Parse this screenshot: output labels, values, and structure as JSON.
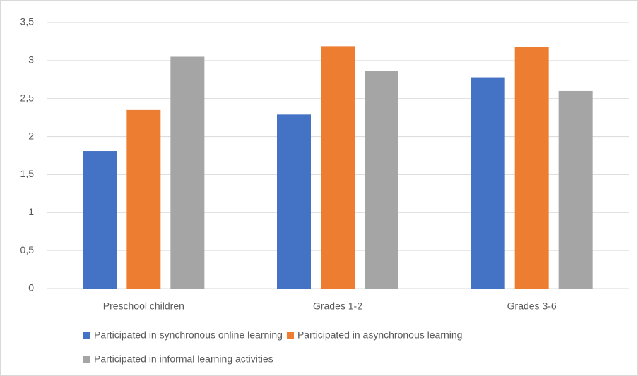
{
  "chart_data": {
    "type": "bar",
    "categories": [
      "Preschool children",
      "Grades 1-2",
      "Grades 3-6"
    ],
    "series": [
      {
        "name": "Participated in synchronous online learning",
        "color": "#4472c4",
        "values": [
          1.81,
          2.29,
          2.78
        ]
      },
      {
        "name": "Participated in asynchronous learning",
        "color": "#ed7d31",
        "values": [
          2.35,
          3.19,
          3.18
        ]
      },
      {
        "name": "Participated in informal learning activities",
        "color": "#a5a5a5",
        "values": [
          3.05,
          2.86,
          2.6
        ]
      }
    ],
    "ylim": [
      0,
      3.5
    ],
    "yticks": [
      0,
      {
        "value": 0.5,
        "label": "0,5"
      },
      1,
      {
        "value": 1.5,
        "label": "1,5"
      },
      2,
      {
        "value": 2.5,
        "label": "2,5"
      },
      3,
      {
        "value": 3.5,
        "label": "3,5"
      }
    ],
    "grid": true,
    "legend": "bottom"
  }
}
